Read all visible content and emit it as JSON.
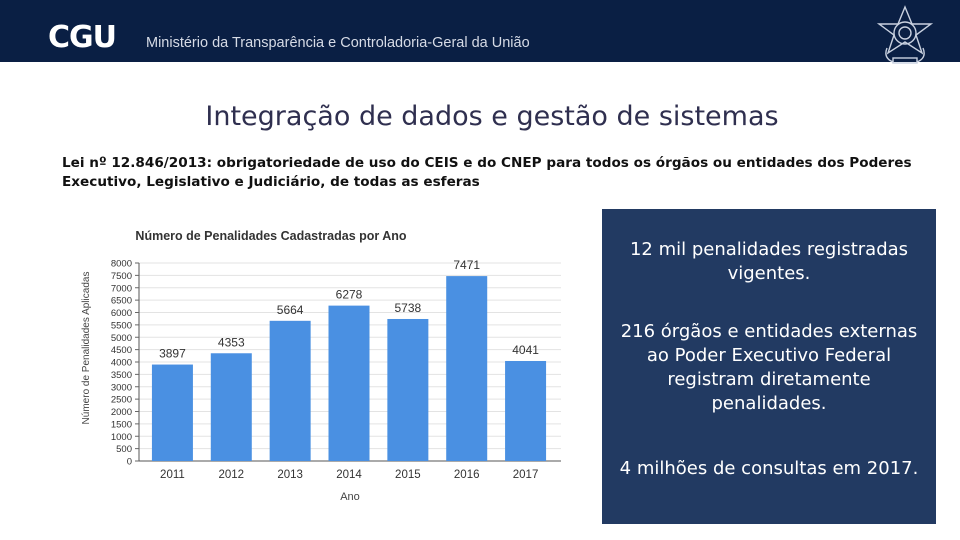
{
  "header": {
    "logo": "CGU",
    "ministry": "Ministério da Transparência e Controladoria-Geral da União"
  },
  "title": "Integração de dados e gestão de sistemas",
  "law_text": "Lei nº 12.846/2013: obrigatoriedade de uso do CEIS e do CNEP para todos os órgãos ou entidades dos Poderes Executivo, Legislativo e Judiciário, de todas as esferas",
  "panel": {
    "items": [
      "12 mil penalidades registradas vigentes.",
      "216 órgãos e entidades externas ao Poder Executivo Federal registram diretamente penalidades.",
      "4 milhões de consultas em 2017."
    ]
  },
  "colors": {
    "header_bg": "#0a1f44",
    "bar": "#4a90e2",
    "panel_bg": "#223a62"
  },
  "chart_data": {
    "type": "bar",
    "title": "Número de Penalidades Cadastradas por Ano",
    "xlabel": "Ano",
    "ylabel": "Número de Penalidades Aplicadas",
    "categories": [
      "2011",
      "2012",
      "2013",
      "2014",
      "2015",
      "2016",
      "2017"
    ],
    "values": [
      3897,
      4353,
      5664,
      6278,
      5738,
      7471,
      4041
    ],
    "ylim": [
      0,
      8000
    ],
    "yticks": [
      0,
      500,
      1000,
      1500,
      2000,
      2500,
      3000,
      3500,
      4000,
      4500,
      5000,
      5500,
      6000,
      6500,
      7000,
      7500,
      8000
    ],
    "grid": true
  }
}
